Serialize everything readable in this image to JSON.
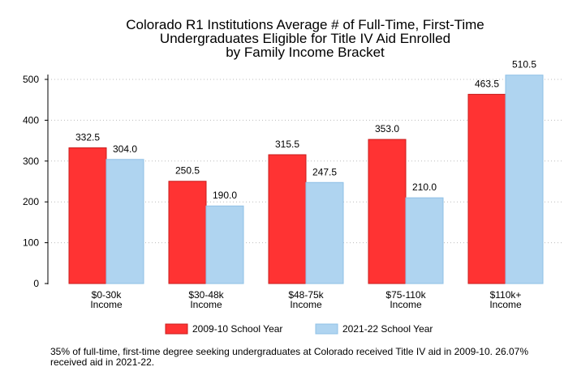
{
  "chart_data": {
    "type": "bar",
    "title": [
      "Colorado R1 Institutions Average # of Full-Time, First-Time",
      "Undergraduates Eligible for Title IV Aid Enrolled",
      "by Family Income Bracket"
    ],
    "categories": [
      [
        "$0-30k",
        "Income"
      ],
      [
        "$30-48k",
        "Income"
      ],
      [
        "$48-75k",
        "Income"
      ],
      [
        "$75-110k",
        "Income"
      ],
      [
        "$110k+",
        "Income"
      ]
    ],
    "series": [
      {
        "name": "2009-10 School Year",
        "values": [
          332.5,
          250.5,
          315.5,
          353.0,
          463.5
        ],
        "color": "#ff3333"
      },
      {
        "name": "2021-22 School Year",
        "values": [
          304.0,
          190.0,
          247.5,
          210.0,
          510.5
        ],
        "color": "#afd4f0"
      }
    ],
    "value_labels": [
      [
        "332.5",
        "250.5",
        "315.5",
        "353.0",
        "463.5"
      ],
      [
        "304.0",
        "190.0",
        "247.5",
        "210.0",
        "510.5"
      ]
    ],
    "yticks": [
      0,
      100,
      200,
      300,
      400,
      500
    ],
    "ylim": [
      0,
      510.5
    ],
    "grid": "horizontal-dotted",
    "legend_position": "bottom"
  },
  "footnote": "35% of full-time, first-time degree seeking undergraduates at Colorado received Title IV aid in 2009-10. 26.07% received aid in 2021-22."
}
